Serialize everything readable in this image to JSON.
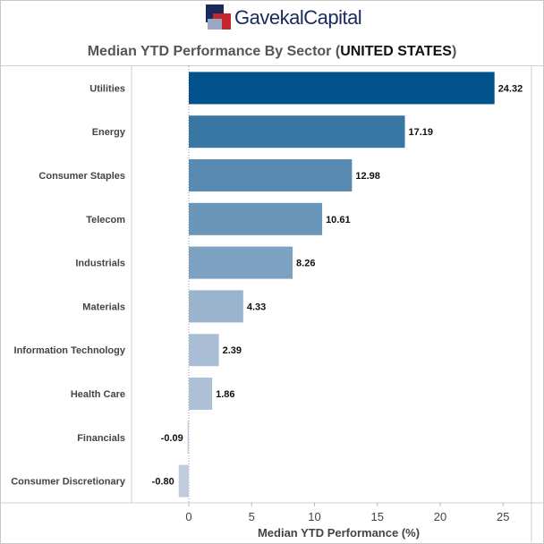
{
  "logo": {
    "text": "GavekalCapital"
  },
  "header": {
    "title_main": "Median YTD Performance By Sector",
    "title_country": "UNITED STATES"
  },
  "colors": {
    "bar_dark": "#02538d",
    "bar_light": "#c1cddf",
    "logo_red": "#c4262e",
    "logo_navy": "#1a2a5c"
  },
  "chart_data": {
    "type": "bar",
    "orientation": "horizontal",
    "title": "Median YTD Performance By Sector (UNITED STATES)",
    "xlabel": "Median YTD Performance (%)",
    "ylabel": "",
    "categories": [
      "Utilities",
      "Energy",
      "Consumer Staples",
      "Telecom",
      "Industrials",
      "Materials",
      "Information Technology",
      "Health Care",
      "Financials",
      "Consumer Discretionary"
    ],
    "values": [
      24.32,
      17.19,
      12.98,
      10.61,
      8.26,
      4.33,
      2.39,
      1.86,
      -0.09,
      -0.8
    ],
    "value_labels": [
      "24.32",
      "17.19",
      "12.98",
      "10.61",
      "8.26",
      "4.33",
      "2.39",
      "1.86",
      "-0.09",
      "-0.80"
    ],
    "xlim": [
      -1,
      25
    ],
    "xticks": [
      0,
      5,
      10,
      15,
      20,
      25
    ],
    "grid": false
  }
}
